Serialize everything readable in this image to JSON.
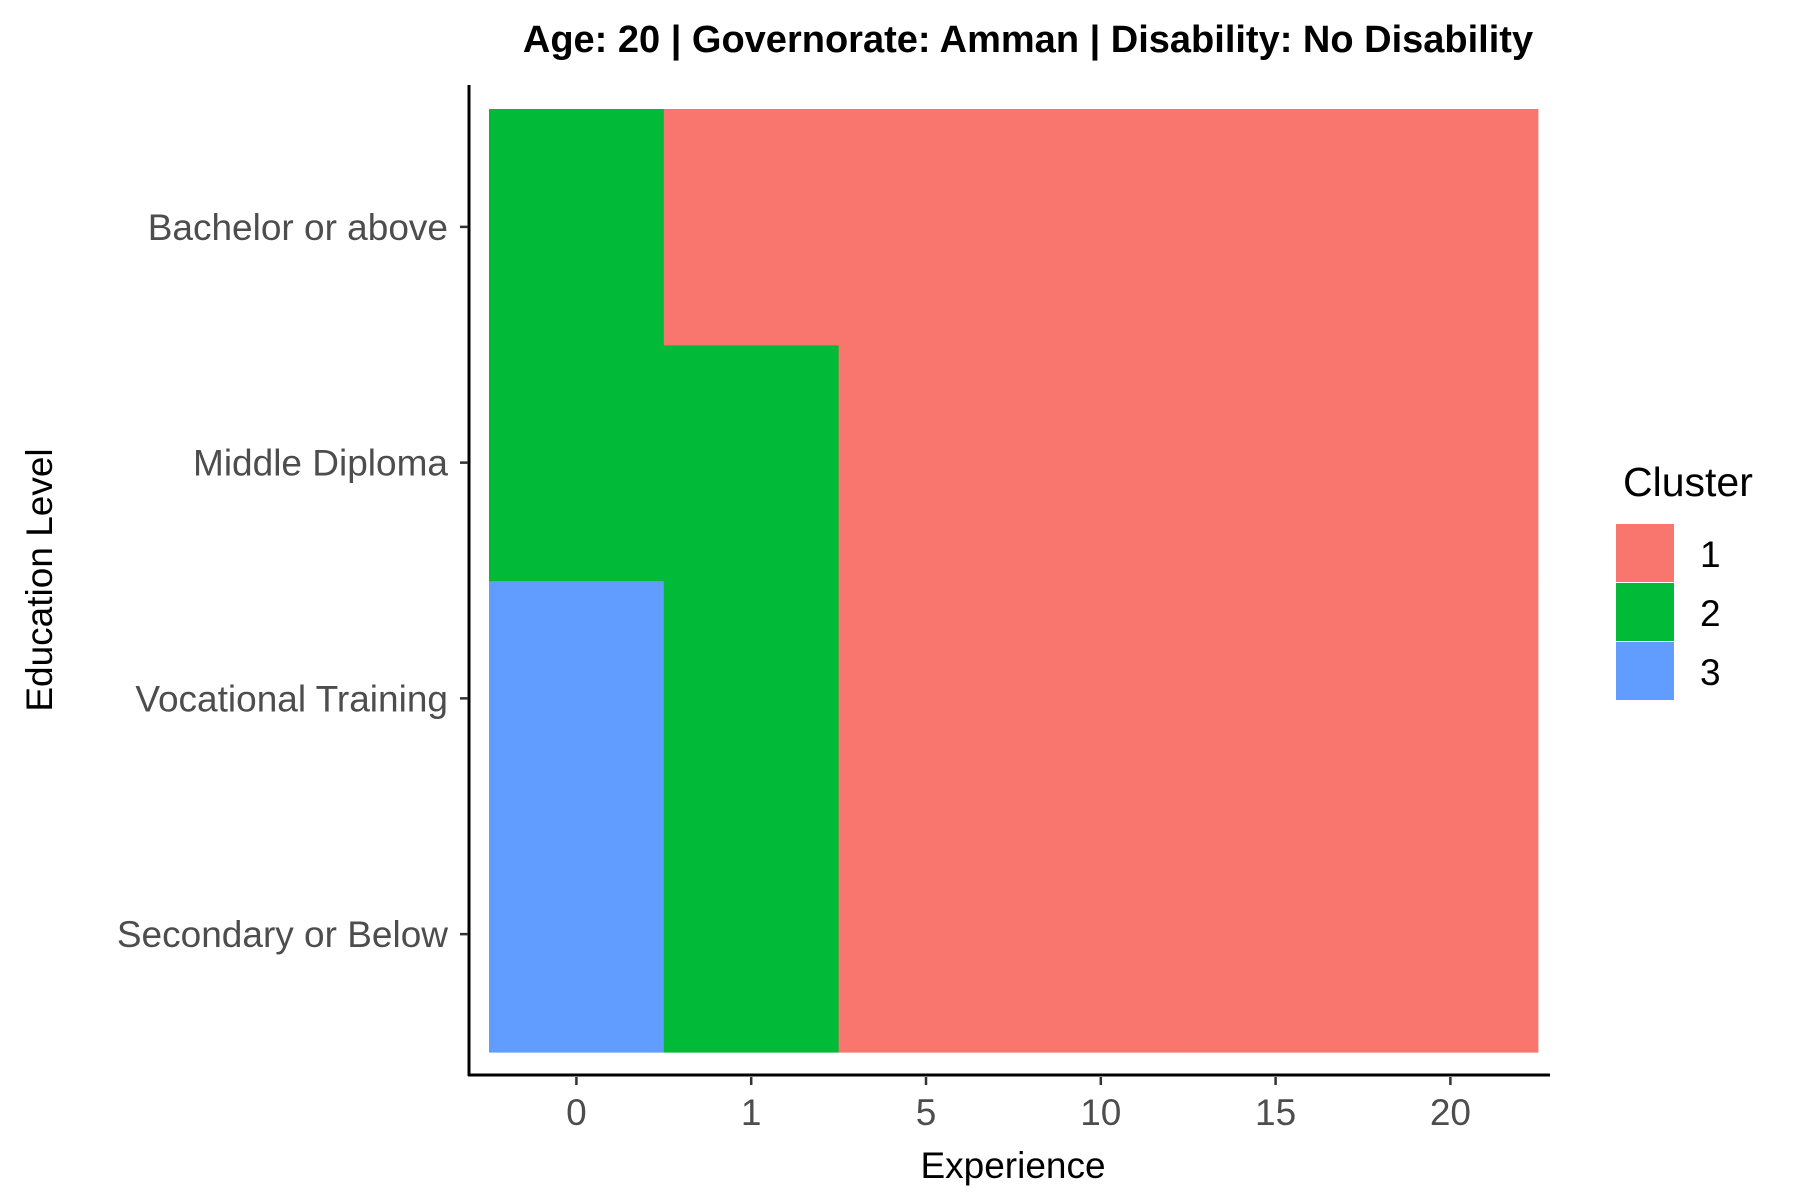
{
  "chart_data": {
    "type": "heatmap",
    "title": "Age: 20 | Governorate: Amman | Disability: No Disability",
    "xlabel": "Experience",
    "ylabel": "Education Level",
    "x_categories": [
      "0",
      "1",
      "5",
      "10",
      "15",
      "20"
    ],
    "y_categories": [
      "Secondary or Below",
      "Vocational Training",
      "Middle Diploma",
      "Bachelor or above"
    ],
    "grid": false,
    "cells": [
      {
        "education": "Secondary or Below",
        "experience": "0",
        "cluster": "3"
      },
      {
        "education": "Secondary or Below",
        "experience": "1",
        "cluster": "2"
      },
      {
        "education": "Secondary or Below",
        "experience": "5",
        "cluster": "1"
      },
      {
        "education": "Secondary or Below",
        "experience": "10",
        "cluster": "1"
      },
      {
        "education": "Secondary or Below",
        "experience": "15",
        "cluster": "1"
      },
      {
        "education": "Secondary or Below",
        "experience": "20",
        "cluster": "1"
      },
      {
        "education": "Vocational Training",
        "experience": "0",
        "cluster": "3"
      },
      {
        "education": "Vocational Training",
        "experience": "1",
        "cluster": "2"
      },
      {
        "education": "Vocational Training",
        "experience": "5",
        "cluster": "1"
      },
      {
        "education": "Vocational Training",
        "experience": "10",
        "cluster": "1"
      },
      {
        "education": "Vocational Training",
        "experience": "15",
        "cluster": "1"
      },
      {
        "education": "Vocational Training",
        "experience": "20",
        "cluster": "1"
      },
      {
        "education": "Middle Diploma",
        "experience": "0",
        "cluster": "2"
      },
      {
        "education": "Middle Diploma",
        "experience": "1",
        "cluster": "2"
      },
      {
        "education": "Middle Diploma",
        "experience": "5",
        "cluster": "1"
      },
      {
        "education": "Middle Diploma",
        "experience": "10",
        "cluster": "1"
      },
      {
        "education": "Middle Diploma",
        "experience": "15",
        "cluster": "1"
      },
      {
        "education": "Middle Diploma",
        "experience": "20",
        "cluster": "1"
      },
      {
        "education": "Bachelor or above",
        "experience": "0",
        "cluster": "2"
      },
      {
        "education": "Bachelor or above",
        "experience": "1",
        "cluster": "1"
      },
      {
        "education": "Bachelor or above",
        "experience": "5",
        "cluster": "1"
      },
      {
        "education": "Bachelor or above",
        "experience": "10",
        "cluster": "1"
      },
      {
        "education": "Bachelor or above",
        "experience": "15",
        "cluster": "1"
      },
      {
        "education": "Bachelor or above",
        "experience": "20",
        "cluster": "1"
      }
    ],
    "legend": {
      "title": "Cluster",
      "position": "right",
      "items": [
        {
          "label": "1",
          "color": "#F8766D"
        },
        {
          "label": "2",
          "color": "#00BA38"
        },
        {
          "label": "3",
          "color": "#619CFF"
        }
      ]
    }
  }
}
